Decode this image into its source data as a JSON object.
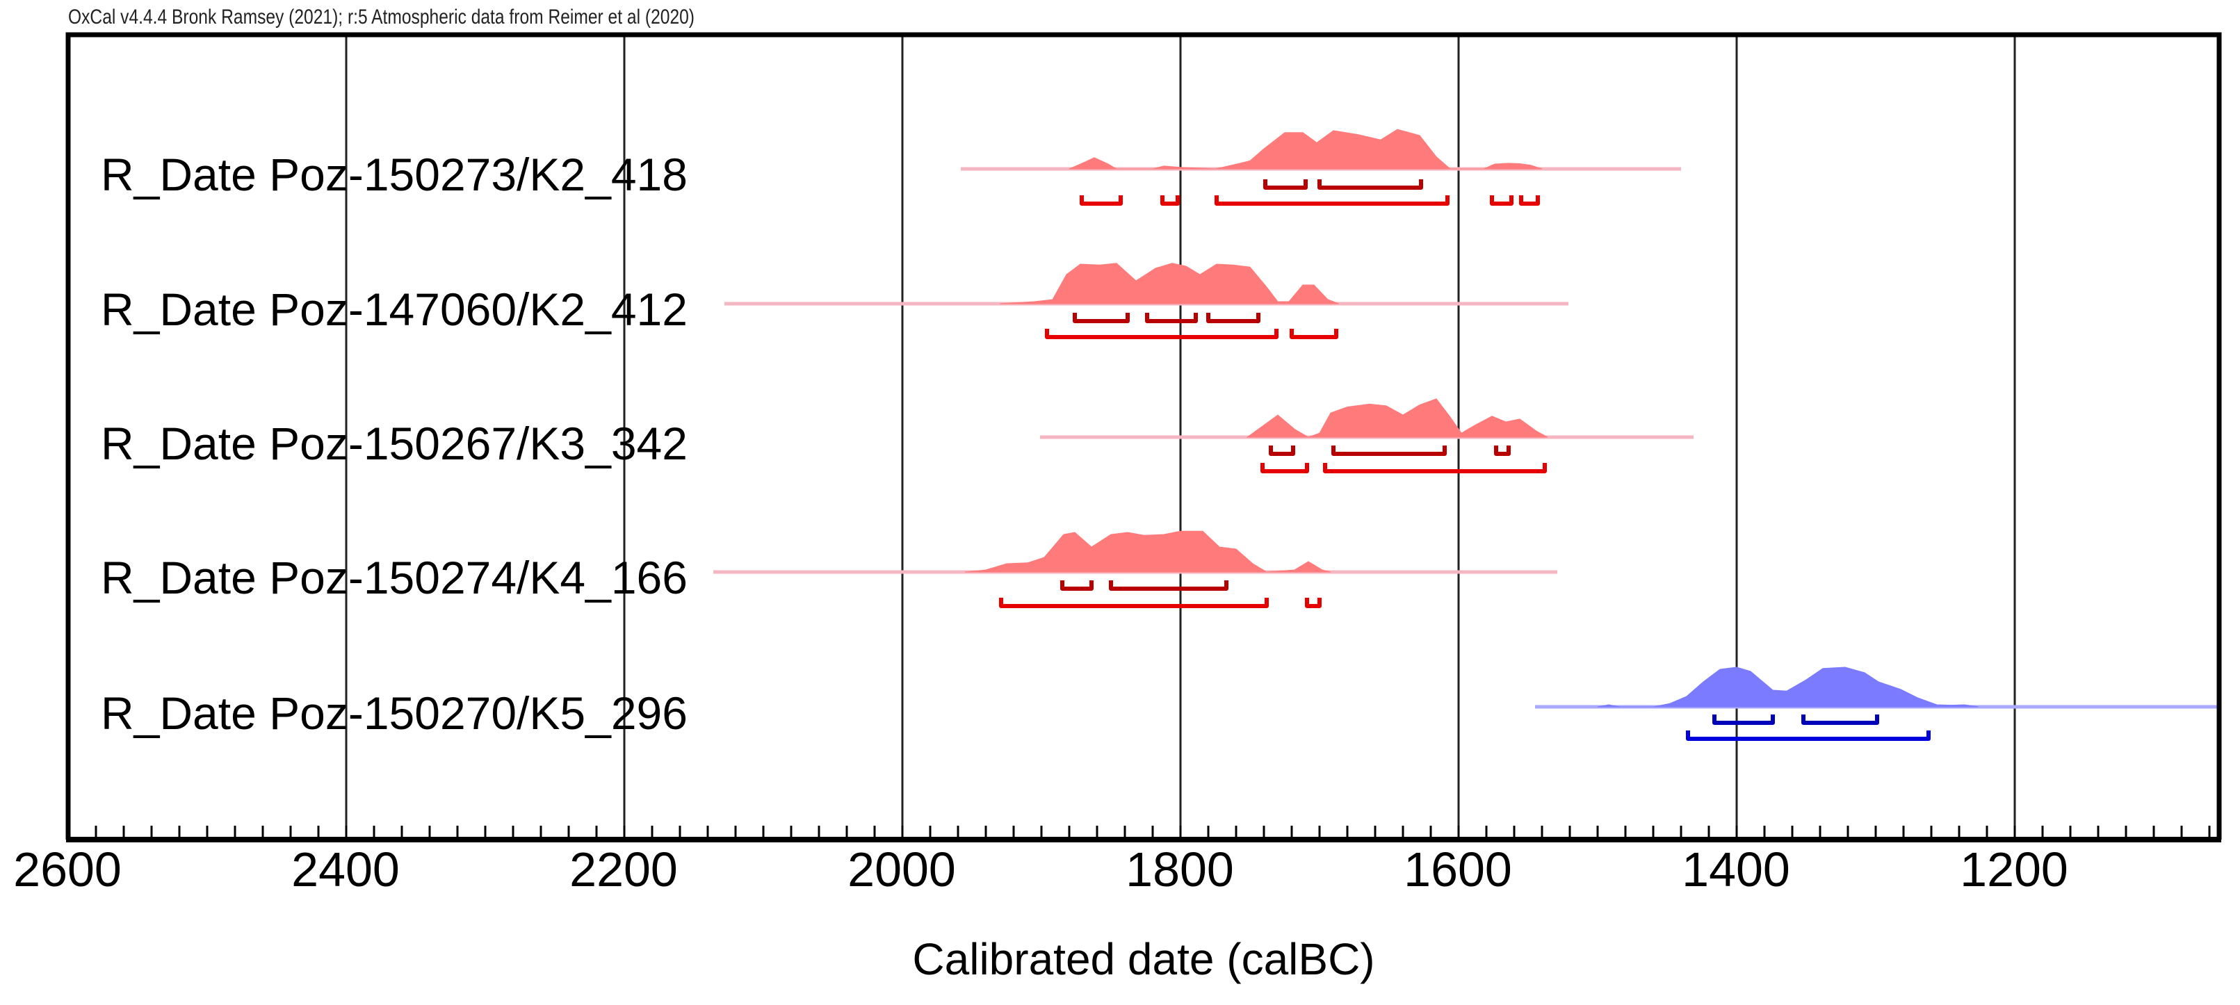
{
  "header": {
    "text": "OxCal v4.4.4 Bronk Ramsey (2021); r:5 Atmospheric data from Reimer et al (2020)"
  },
  "axis": {
    "xlabel": "Calibrated date (calBC)",
    "ticks": [
      "2600",
      "2400",
      "2200",
      "2000",
      "1800",
      "1600",
      "1400",
      "1200"
    ]
  },
  "colors": {
    "red_fill": "#ff7b7b",
    "red_line": "#f4b6c0",
    "red_1sigma": "#b80000",
    "red_2sigma": "#e60000",
    "blue_fill": "#7b7bff",
    "blue_line": "#a9a9ff",
    "blue_1sigma": "#0000b8",
    "blue_2sigma": "#0000dd",
    "grid": "#222222",
    "frame": "#000000"
  },
  "chart_data": {
    "type": "area",
    "title": "OxCal v4.4.4 Bronk Ramsey (2021); r:5 Atmospheric data from Reimer et al (2020)",
    "xlabel": "Calibrated date (calBC)",
    "ylabel": "",
    "xlim": [
      2600,
      1053
    ],
    "x_reversed": true,
    "grid": true,
    "major_ticks": [
      2600,
      2400,
      2200,
      2000,
      1800,
      1600,
      1400,
      1200
    ],
    "minor_tick_step": 20,
    "series": [
      {
        "name": "R_Date Poz-150273/K2_418",
        "color": "red",
        "line_range": [
          1958,
          1440
        ],
        "profile": [
          [
            1880,
            0
          ],
          [
            1870,
            0.15
          ],
          [
            1862,
            0.28
          ],
          [
            1852,
            0.12
          ],
          [
            1846,
            0
          ],
          [
            1820,
            0
          ],
          [
            1812,
            0.07
          ],
          [
            1800,
            0.04
          ],
          [
            1775,
            0
          ],
          [
            1762,
            0.1
          ],
          [
            1750,
            0.2
          ],
          [
            1740,
            0.5
          ],
          [
            1725,
            0.9
          ],
          [
            1712,
            0.9
          ],
          [
            1702,
            0.65
          ],
          [
            1690,
            0.95
          ],
          [
            1672,
            0.85
          ],
          [
            1656,
            0.72
          ],
          [
            1644,
            0.98
          ],
          [
            1628,
            0.83
          ],
          [
            1616,
            0.3
          ],
          [
            1606,
            0
          ],
          [
            1582,
            0
          ],
          [
            1574,
            0.12
          ],
          [
            1564,
            0.14
          ],
          [
            1556,
            0.13
          ],
          [
            1548,
            0.09
          ],
          [
            1540,
            0
          ]
        ],
        "sigma1": [
          [
            1739,
            1710
          ],
          [
            1700,
            1627
          ]
        ],
        "sigma2": [
          [
            1871,
            1843
          ],
          [
            1813,
            1802
          ],
          [
            1774,
            1608
          ],
          [
            1576,
            1562
          ],
          [
            1555,
            1543
          ]
        ]
      },
      {
        "name": "R_Date Poz-147060/K2_412",
        "color": "red",
        "line_range": [
          2128,
          1521
        ],
        "profile": [
          [
            1930,
            0
          ],
          [
            1905,
            0.05
          ],
          [
            1892,
            0.1
          ],
          [
            1882,
            0.7
          ],
          [
            1872,
            0.95
          ],
          [
            1858,
            0.93
          ],
          [
            1846,
            0.97
          ],
          [
            1832,
            0.55
          ],
          [
            1818,
            0.85
          ],
          [
            1806,
            0.97
          ],
          [
            1796,
            0.9
          ],
          [
            1786,
            0.7
          ],
          [
            1774,
            0.95
          ],
          [
            1762,
            0.93
          ],
          [
            1750,
            0.88
          ],
          [
            1738,
            0.4
          ],
          [
            1730,
            0.05
          ],
          [
            1722,
            0.05
          ],
          [
            1712,
            0.45
          ],
          [
            1704,
            0.45
          ],
          [
            1694,
            0.1
          ],
          [
            1686,
            0
          ]
        ],
        "sigma1": [
          [
            1876,
            1838
          ],
          [
            1824,
            1789
          ],
          [
            1780,
            1744
          ]
        ],
        "sigma2": [
          [
            1896,
            1731
          ],
          [
            1720,
            1688
          ]
        ]
      },
      {
        "name": "R_Date Poz-150267/K3_342",
        "color": "red",
        "line_range": [
          1901,
          1431
        ],
        "profile": [
          [
            1752,
            0
          ],
          [
            1742,
            0.25
          ],
          [
            1730,
            0.55
          ],
          [
            1718,
            0.2
          ],
          [
            1708,
            0
          ],
          [
            1700,
            0.1
          ],
          [
            1692,
            0.6
          ],
          [
            1680,
            0.75
          ],
          [
            1664,
            0.82
          ],
          [
            1652,
            0.78
          ],
          [
            1640,
            0.55
          ],
          [
            1628,
            0.8
          ],
          [
            1616,
            0.95
          ],
          [
            1606,
            0.5
          ],
          [
            1598,
            0.1
          ],
          [
            1588,
            0.3
          ],
          [
            1576,
            0.52
          ],
          [
            1566,
            0.38
          ],
          [
            1556,
            0.45
          ],
          [
            1544,
            0.15
          ],
          [
            1536,
            0
          ]
        ],
        "sigma1": [
          [
            1735,
            1719
          ],
          [
            1690,
            1610
          ],
          [
            1573,
            1564
          ]
        ],
        "sigma2": [
          [
            1741,
            1709
          ],
          [
            1696,
            1538
          ]
        ]
      },
      {
        "name": "R_Date Poz-150274/K4_166",
        "color": "red",
        "line_range": [
          2136,
          1529
        ],
        "profile": [
          [
            1955,
            0
          ],
          [
            1940,
            0.05
          ],
          [
            1925,
            0.2
          ],
          [
            1910,
            0.22
          ],
          [
            1898,
            0.35
          ],
          [
            1884,
            0.9
          ],
          [
            1876,
            0.95
          ],
          [
            1864,
            0.6
          ],
          [
            1850,
            0.9
          ],
          [
            1838,
            0.95
          ],
          [
            1826,
            0.88
          ],
          [
            1812,
            0.9
          ],
          [
            1800,
            0.98
          ],
          [
            1784,
            0.98
          ],
          [
            1772,
            0.6
          ],
          [
            1760,
            0.55
          ],
          [
            1748,
            0.2
          ],
          [
            1738,
            0
          ],
          [
            1718,
            0.05
          ],
          [
            1708,
            0.25
          ],
          [
            1698,
            0.05
          ],
          [
            1692,
            0
          ]
        ],
        "sigma1": [
          [
            1885,
            1864
          ],
          [
            1850,
            1767
          ]
        ],
        "sigma2": [
          [
            1929,
            1738
          ],
          [
            1709,
            1700
          ]
        ]
      },
      {
        "name": "R_Date Poz-150270/K5_296",
        "color": "blue",
        "line_range": [
          1545,
          1053
        ],
        "profile": [
          [
            1500,
            0
          ],
          [
            1492,
            0.05
          ],
          [
            1484,
            0
          ],
          [
            1460,
            0
          ],
          [
            1448,
            0.08
          ],
          [
            1436,
            0.25
          ],
          [
            1424,
            0.6
          ],
          [
            1412,
            0.9
          ],
          [
            1400,
            0.95
          ],
          [
            1390,
            0.85
          ],
          [
            1374,
            0.4
          ],
          [
            1364,
            0.38
          ],
          [
            1350,
            0.65
          ],
          [
            1338,
            0.92
          ],
          [
            1322,
            0.95
          ],
          [
            1308,
            0.82
          ],
          [
            1298,
            0.6
          ],
          [
            1282,
            0.42
          ],
          [
            1270,
            0.22
          ],
          [
            1256,
            0.05
          ],
          [
            1246,
            0.04
          ],
          [
            1236,
            0.05
          ],
          [
            1226,
            0
          ]
        ],
        "sigma1": [
          [
            1416,
            1374
          ],
          [
            1352,
            1299
          ]
        ],
        "sigma2": [
          [
            1435,
            1262
          ]
        ]
      }
    ]
  }
}
